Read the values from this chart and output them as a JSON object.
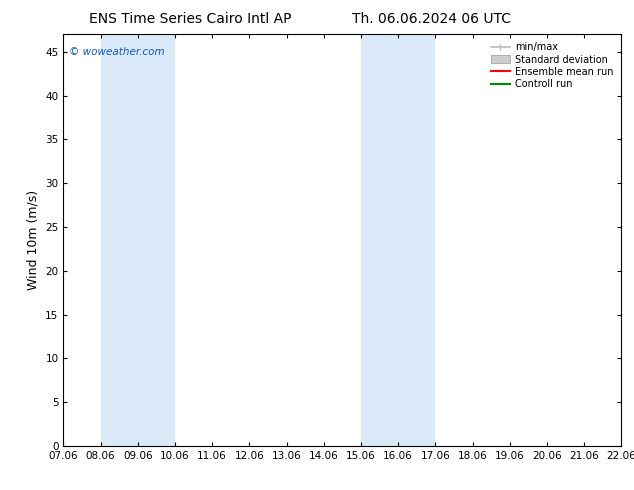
{
  "title_left": "ENS Time Series Cairo Intl AP",
  "title_right": "Th. 06.06.2024 06 UTC",
  "ylabel": "Wind 10m (m/s)",
  "watermark": "© woweather.com",
  "background_color": "#ffffff",
  "plot_bg_color": "#ffffff",
  "shaded_regions": [
    {
      "xstart": 8.06,
      "xend": 10.06,
      "color": "#daeaf8"
    },
    {
      "xstart": 15.06,
      "xend": 17.06,
      "color": "#daeaf8"
    }
  ],
  "ylim": [
    0,
    47
  ],
  "yticks": [
    0,
    5,
    10,
    15,
    20,
    25,
    30,
    35,
    40,
    45
  ],
  "xticks": [
    7.06,
    8.06,
    9.06,
    10.06,
    11.06,
    12.06,
    13.06,
    14.06,
    15.06,
    16.06,
    17.06,
    18.06,
    19.06,
    20.06,
    21.06,
    22.06
  ],
  "xtick_labels": [
    "07.06",
    "08.06",
    "09.06",
    "10.06",
    "11.06",
    "12.06",
    "13.06",
    "14.06",
    "15.06",
    "16.06",
    "17.06",
    "18.06",
    "19.06",
    "20.06",
    "21.06",
    "22.06"
  ],
  "xlim": [
    7.06,
    22.06
  ],
  "legend_items": [
    {
      "label": "min/max",
      "color": "#bbbbbb",
      "style": "minmax"
    },
    {
      "label": "Standard deviation",
      "color": "#cccccc",
      "style": "stddev"
    },
    {
      "label": "Ensemble mean run",
      "color": "#ff0000",
      "style": "line"
    },
    {
      "label": "Controll run",
      "color": "#008800",
      "style": "line"
    }
  ],
  "title_fontsize": 10,
  "tick_fontsize": 7.5,
  "ylabel_fontsize": 9,
  "watermark_color": "#1155cc",
  "axis_color": "#000000"
}
